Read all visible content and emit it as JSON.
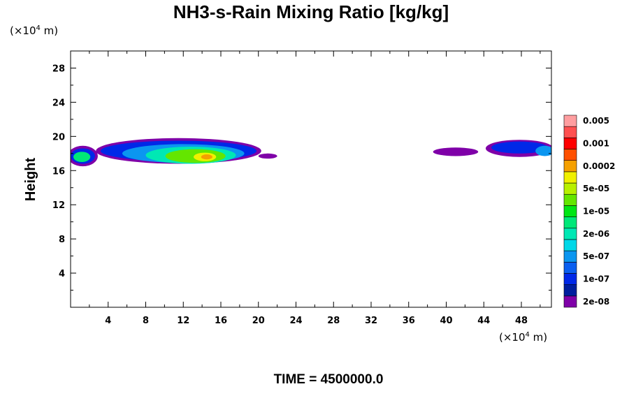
{
  "chart_data": {
    "type": "contour",
    "title": "NH3-s-Rain Mixing Ratio [kg/kg]",
    "ylabel": "Height",
    "x_unit": {
      "prefix": "(×10",
      "exp": "4",
      "suffix": " m)"
    },
    "y_unit": {
      "prefix": "(×10",
      "exp": "4",
      "suffix": " m)"
    },
    "xlim": [
      0,
      51.2
    ],
    "ylim": [
      0,
      30
    ],
    "x_ticks": [
      4,
      8,
      12,
      16,
      20,
      24,
      28,
      32,
      36,
      40,
      44,
      48
    ],
    "y_ticks": [
      4,
      8,
      12,
      16,
      20,
      24,
      28
    ],
    "colorbar": {
      "colors": [
        "#7f00a8",
        "#001e9e",
        "#0028e8",
        "#0a5ff0",
        "#0b96f0",
        "#00d8e8",
        "#00e8b4",
        "#00e878",
        "#00e614",
        "#64e600",
        "#b8f000",
        "#f0f000",
        "#f5a000",
        "#ff5000",
        "#ff0000",
        "#ff5050",
        "#ff9ea0"
      ],
      "labels": [
        "2e-08",
        "1e-07",
        "5e-07",
        "2e-06",
        "1e-05",
        "5e-05",
        "0.0002",
        "0.001",
        "0.005"
      ]
    },
    "regions": [
      {
        "color": "#7f00a8",
        "cx": 1.3,
        "cy": 17.7,
        "rx": 1.6,
        "ry": 1.2
      },
      {
        "color": "#0028e8",
        "cx": 1.3,
        "cy": 17.7,
        "rx": 1.3,
        "ry": 0.9
      },
      {
        "color": "#00e878",
        "cx": 1.2,
        "cy": 17.6,
        "rx": 0.9,
        "ry": 0.6
      },
      {
        "color": "#7f00a8",
        "cx": 11.5,
        "cy": 18.3,
        "rx": 8.8,
        "ry": 1.5
      },
      {
        "color": "#0028e8",
        "cx": 11.5,
        "cy": 18.3,
        "rx": 8.3,
        "ry": 1.2
      },
      {
        "color": "#0b96f0",
        "cx": 12.0,
        "cy": 18.0,
        "rx": 6.5,
        "ry": 1.1
      },
      {
        "color": "#00e8b4",
        "cx": 12.8,
        "cy": 17.8,
        "rx": 4.8,
        "ry": 1.0
      },
      {
        "color": "#64e600",
        "cx": 13.3,
        "cy": 17.7,
        "rx": 3.2,
        "ry": 0.8
      },
      {
        "color": "#f0f000",
        "cx": 14.3,
        "cy": 17.6,
        "rx": 1.2,
        "ry": 0.5
      },
      {
        "color": "#f5a000",
        "cx": 14.5,
        "cy": 17.6,
        "rx": 0.6,
        "ry": 0.3
      },
      {
        "color": "#7f00a8",
        "cx": 21.0,
        "cy": 17.7,
        "rx": 1.0,
        "ry": 0.3
      },
      {
        "color": "#7f00a8",
        "cx": 41.0,
        "cy": 18.2,
        "rx": 2.4,
        "ry": 0.5
      },
      {
        "color": "#7f00a8",
        "cx": 47.8,
        "cy": 18.6,
        "rx": 3.6,
        "ry": 1.0
      },
      {
        "color": "#0028e8",
        "cx": 47.8,
        "cy": 18.7,
        "rx": 3.0,
        "ry": 0.7
      },
      {
        "color": "#0b96f0",
        "cx": 50.5,
        "cy": 18.3,
        "rx": 1.0,
        "ry": 0.6
      }
    ],
    "annotation": "TIME = 4500000.0"
  }
}
